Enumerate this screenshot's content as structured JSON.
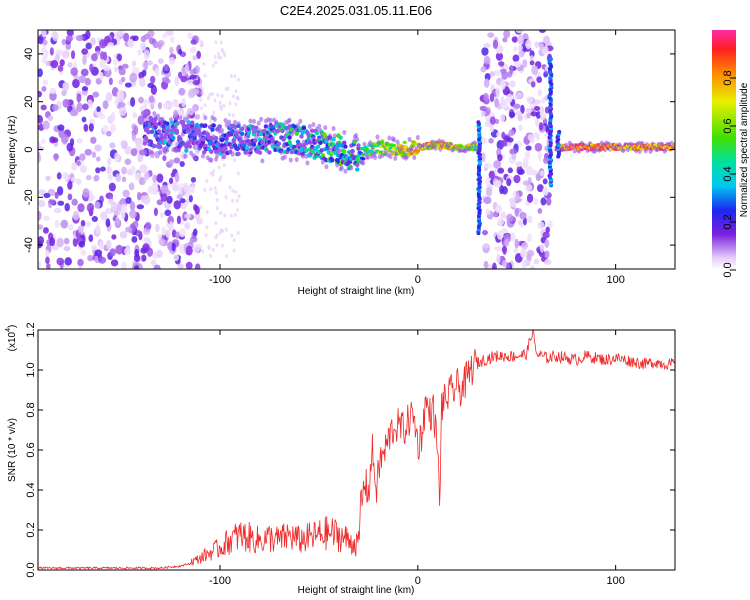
{
  "title": "C2E4.2025.031.05.11.E06",
  "chart_data": [
    {
      "type": "heatmap",
      "xlabel": "Height of straight line (km)",
      "ylabel": "Frequency (Hz)",
      "xlim": [
        -192,
        130
      ],
      "ylim": [
        -50,
        50
      ],
      "x_ticks": [
        -100,
        0,
        100
      ],
      "x_tick_labels": [
        "-100",
        "0",
        "100"
      ],
      "y_ticks": [
        -40,
        -20,
        0,
        20,
        40
      ],
      "y_tick_labels": [
        "-40",
        "-20",
        "0",
        "20",
        "40"
      ],
      "colorbar": {
        "label": "Normalized spectral amplitude",
        "range": [
          0,
          1
        ],
        "ticks": [
          0.0,
          0.2,
          0.4,
          0.6,
          0.8
        ],
        "tick_labels": [
          "0.0",
          "0.2",
          "0.4",
          "0.6",
          "0.8"
        ]
      },
      "ridge": {
        "description_free": true,
        "x": [
          -138,
          -125,
          -110,
          -100,
          -90,
          -80,
          -70,
          -60,
          -50,
          -40,
          -35,
          -30,
          -20,
          -10,
          0,
          10,
          20,
          28,
          75,
          90,
          110,
          130
        ],
        "frequency": [
          8,
          6,
          5,
          4,
          4,
          4,
          5,
          4,
          2,
          0,
          -2,
          -3,
          1,
          0,
          1,
          2,
          1,
          1,
          1,
          1,
          1,
          1
        ],
        "amplitude": [
          0.25,
          0.35,
          0.3,
          0.3,
          0.35,
          0.4,
          0.45,
          0.45,
          0.5,
          0.55,
          0.5,
          0.45,
          0.65,
          0.75,
          0.85,
          0.8,
          0.75,
          0.7,
          0.95,
          0.95,
          0.9,
          0.9
        ]
      },
      "noise_regions": [
        [
          -192,
          -110
        ],
        [
          33,
          67
        ]
      ],
      "spikes": [
        {
          "x": 31,
          "f": [
            -35,
            12
          ]
        },
        {
          "x": 67,
          "f": [
            -15,
            38
          ]
        },
        {
          "x": 71,
          "f": [
            -3,
            8
          ]
        }
      ]
    },
    {
      "type": "line",
      "xlabel": "Height of straight line (km)",
      "ylabel": "SNR (10 * v/v)",
      "multiplier_label": "(x10",
      "multiplier_exp": "4",
      "xlim": [
        -192,
        130
      ],
      "ylim": [
        0,
        1.2
      ],
      "x_ticks": [
        -100,
        0,
        100
      ],
      "x_tick_labels": [
        "-100",
        "0",
        "100"
      ],
      "y_ticks": [
        0.0,
        0.2,
        0.4,
        0.6,
        0.8,
        1.0,
        1.2
      ],
      "y_tick_labels": [
        "0.0",
        "0.2",
        "0.4",
        "0.6",
        "0.8",
        "1.0",
        "1.2"
      ],
      "color": "#ee2a2a",
      "series": [
        {
          "x": [
            -192,
            -170,
            -150,
            -130,
            -120,
            -112,
            -105,
            -100,
            -95,
            -90,
            -85,
            -80,
            -75,
            -70,
            -65,
            -60,
            -55,
            -50,
            -45,
            -40,
            -35,
            -30,
            -27,
            -25,
            -23,
            -21,
            -19,
            -17,
            -15,
            -13,
            -11,
            -9,
            -7,
            -5,
            -3,
            -1,
            0,
            2,
            4,
            6,
            8,
            10,
            11,
            12,
            14,
            16,
            18,
            20,
            22,
            24,
            26,
            28,
            30,
            33,
            36,
            40,
            45,
            50,
            55,
            58,
            60,
            65,
            70,
            75,
            80,
            85,
            90,
            95,
            100,
            105,
            110,
            115,
            120,
            125,
            130
          ],
          "y": [
            0.01,
            0.01,
            0.01,
            0.01,
            0.02,
            0.04,
            0.07,
            0.09,
            0.12,
            0.14,
            0.13,
            0.12,
            0.13,
            0.12,
            0.14,
            0.12,
            0.13,
            0.14,
            0.15,
            0.14,
            0.12,
            0.1,
            0.45,
            0.38,
            0.6,
            0.4,
            0.55,
            0.58,
            0.65,
            0.7,
            0.72,
            0.72,
            0.7,
            0.74,
            0.78,
            0.72,
            0.62,
            0.68,
            0.84,
            0.78,
            0.8,
            0.6,
            0.32,
            0.82,
            0.85,
            0.88,
            0.9,
            0.92,
            0.9,
            0.94,
            0.98,
            1.02,
            1.03,
            1.05,
            1.06,
            1.07,
            1.07,
            1.07,
            1.08,
            1.2,
            1.08,
            1.06,
            1.07,
            1.06,
            1.05,
            1.07,
            1.06,
            1.05,
            1.06,
            1.05,
            1.04,
            1.03,
            1.04,
            1.03,
            1.03
          ]
        }
      ]
    }
  ]
}
